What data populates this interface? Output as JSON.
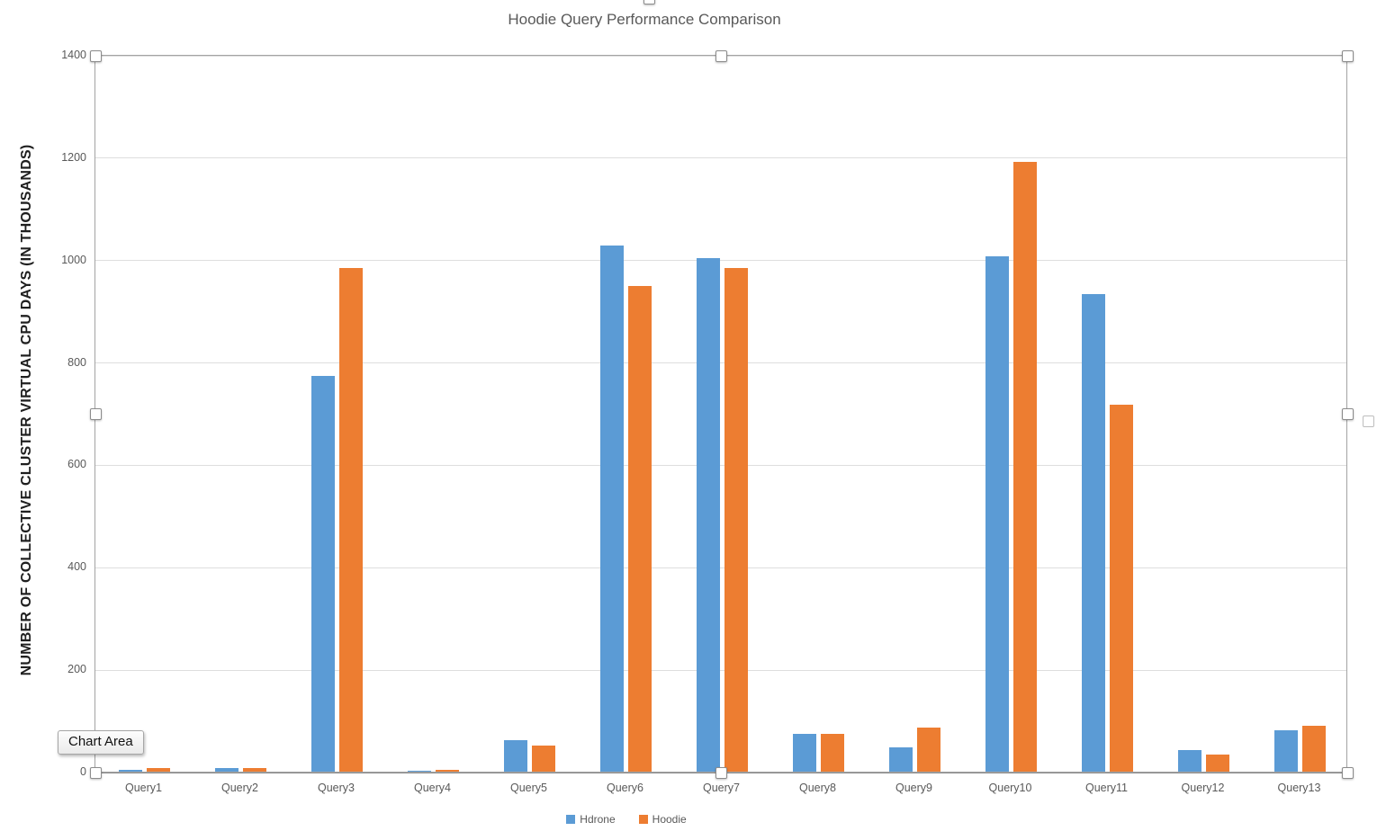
{
  "chart_data": {
    "type": "bar",
    "title": "Hoodie Query Performance Comparison",
    "ylabel": "NUMBER OF COLLECTIVE CLUSTER VIRTUAL CPU DAYS (IN THOUSANDS)",
    "xlabel": "",
    "categories": [
      "Query1",
      "Query2",
      "Query3",
      "Query4",
      "Query5",
      "Query6",
      "Query7",
      "Query8",
      "Query9",
      "Query10",
      "Query11",
      "Query12",
      "Query13"
    ],
    "series": [
      {
        "name": "Hdrone",
        "color": "#5B9BD5",
        "values": [
          5,
          9,
          775,
          4,
          64,
          1030,
          1005,
          75,
          50,
          1008,
          935,
          44,
          82
        ]
      },
      {
        "name": "Hoodie",
        "color": "#ED7D31",
        "values": [
          8,
          8,
          985,
          5,
          52,
          950,
          985,
          76,
          87,
          1193,
          719,
          35,
          91
        ]
      }
    ],
    "ylim": [
      0,
      1400
    ],
    "yticks": [
      0,
      200,
      400,
      600,
      800,
      1000,
      1200,
      1400
    ],
    "grid": true,
    "legend_position": "bottom"
  },
  "tooltip": {
    "text": "Chart Area"
  },
  "colors": {
    "axis_text": "#595959",
    "gridline": "#dedede",
    "axis_line": "#8c8c8c",
    "selection_border": "#a3a3a3",
    "series_blue": "#5B9BD5",
    "series_orange": "#ED7D31"
  }
}
